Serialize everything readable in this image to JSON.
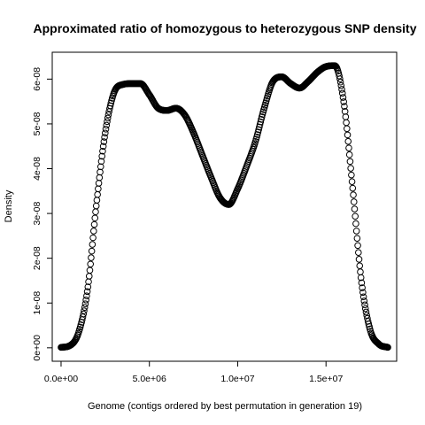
{
  "chart_data": {
    "type": "scatter",
    "title": "Approximated ratio of homozygous to heterozygous SNP density",
    "xlabel": "Genome (contigs ordered by best permutation in generation 19)",
    "ylabel": "Density",
    "xlim": [
      -500000,
      19000000
    ],
    "ylim": [
      -3e-09,
      6.6e-08
    ],
    "x_ticks": [
      {
        "value": 0,
        "label": "0.0e+00"
      },
      {
        "value": 5000000,
        "label": "5.0e+06"
      },
      {
        "value": 10000000,
        "label": "1.0e+07"
      },
      {
        "value": 15000000,
        "label": "1.5e+07"
      }
    ],
    "y_ticks": [
      {
        "value": 0,
        "label": "0e+00"
      },
      {
        "value": 1e-08,
        "label": "1e-08"
      },
      {
        "value": 2e-08,
        "label": "2e-08"
      },
      {
        "value": 3e-08,
        "label": "3e-08"
      },
      {
        "value": 4e-08,
        "label": "4e-08"
      },
      {
        "value": 5e-08,
        "label": "5e-08"
      },
      {
        "value": 6e-08,
        "label": "6e-08"
      }
    ],
    "x_range": [
      0,
      18500000
    ],
    "n_points": 512,
    "curve_knots": {
      "x": [
        0,
        500000,
        1000000,
        1500000,
        2000000,
        2500000,
        3000000,
        3500000,
        4000000,
        4500000,
        5000000,
        5500000,
        6000000,
        6500000,
        7000000,
        7500000,
        8000000,
        8500000,
        9000000,
        9500000,
        10000000,
        10500000,
        11000000,
        11500000,
        12000000,
        12500000,
        13000000,
        13500000,
        14000000,
        14500000,
        15000000,
        15500000,
        16000000,
        16500000,
        17000000,
        17500000,
        18000000,
        18500000
      ],
      "y": [
        1e-10,
        5e-10,
        3.5e-09,
        1.3e-08,
        3.2e-08,
        4.8e-08,
        5.7e-08,
        5.88e-08,
        5.9e-08,
        5.9e-08,
        5.65e-08,
        5.35e-08,
        5.3e-08,
        5.35e-08,
        5.2e-08,
        4.8e-08,
        4.3e-08,
        3.8e-08,
        3.35e-08,
        3.2e-08,
        3.55e-08,
        4.05e-08,
        4.6e-08,
        5.35e-08,
        5.95e-08,
        6.05e-08,
        5.9e-08,
        5.8e-08,
        5.95e-08,
        6.15e-08,
        6.28e-08,
        6.3e-08,
        5.5e-08,
        3.6e-08,
        1.5e-08,
        4e-09,
        8e-10,
        1e-10
      ]
    }
  }
}
